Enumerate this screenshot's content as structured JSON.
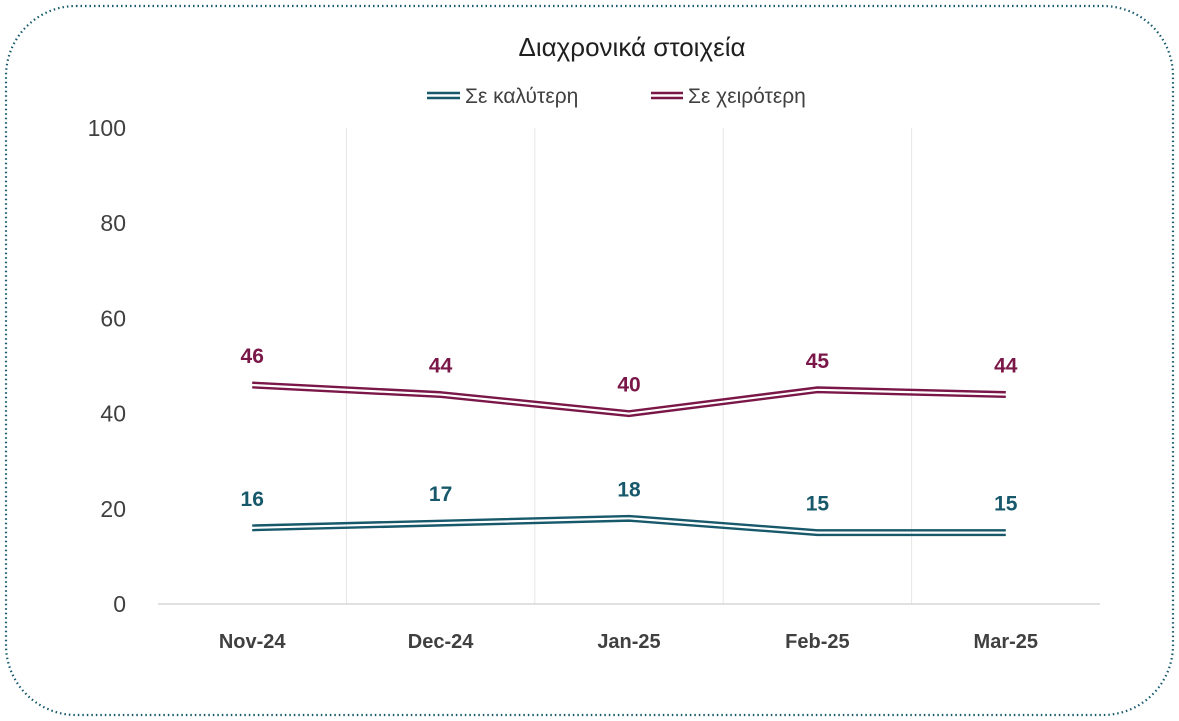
{
  "colors": {
    "series_better": "#17596b",
    "series_worse": "#7a1748",
    "grid": "#e6e6e6",
    "axis": "#cfcfcf",
    "frame_border": "#17596b"
  },
  "chart_data": {
    "type": "line",
    "title": "Διαχρονικά στοιχεία",
    "categories": [
      "Nov-24",
      "Dec-24",
      "Jan-25",
      "Feb-25",
      "Mar-25"
    ],
    "series": [
      {
        "name": "Σε καλύτερη",
        "values": [
          16,
          17,
          18,
          15,
          15
        ],
        "color": "#17596b"
      },
      {
        "name": "Σε χειρότερη",
        "values": [
          46,
          44,
          40,
          45,
          44
        ],
        "color": "#7a1748"
      }
    ],
    "ylim": [
      0,
      100
    ],
    "yticks": [
      "0",
      "20",
      "40",
      "60",
      "80",
      "100"
    ],
    "grid": "vertical",
    "legend": "top-center",
    "line_style": "double",
    "data_labels": true
  }
}
